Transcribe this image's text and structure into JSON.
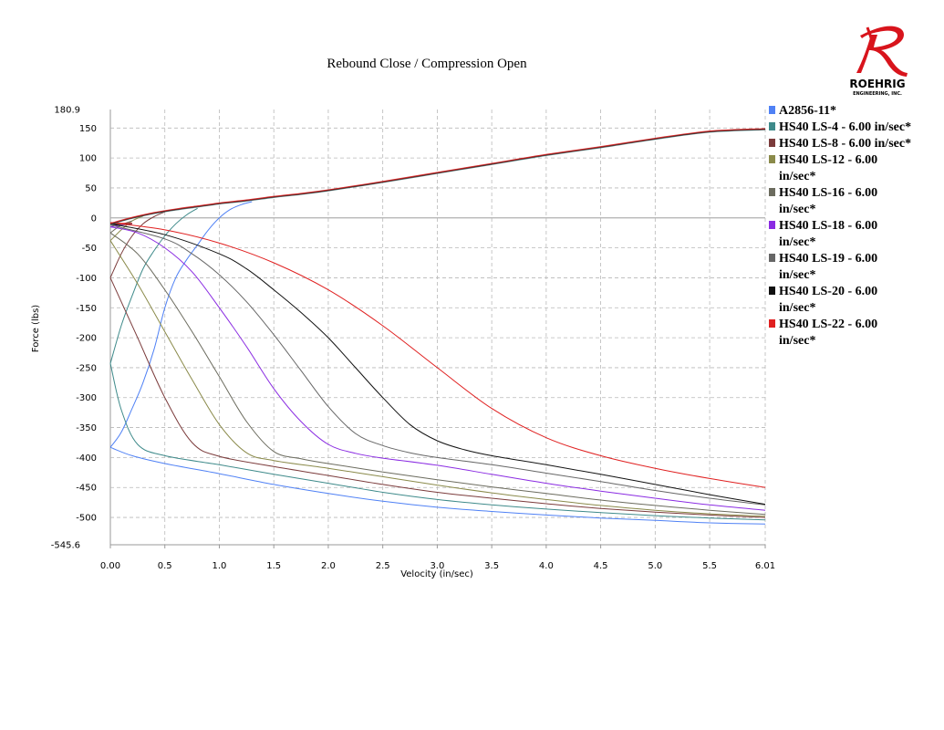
{
  "logo": {
    "name": "ROEHRIG",
    "sub": "ENGINEERING, INC."
  },
  "chart_data": {
    "type": "line",
    "title": "Rebound Close / Compression Open",
    "xlabel": "Velocity (in/sec)",
    "ylabel": "Force (lbs)",
    "xlim": [
      0,
      6.01
    ],
    "ylim": [
      -545.6,
      180.9
    ],
    "xticks": [
      "0.00",
      "0.5",
      "1.0",
      "1.5",
      "2.0",
      "2.5",
      "3.0",
      "3.5",
      "4.0",
      "4.5",
      "5.0",
      "5.5",
      "6.01"
    ],
    "xtick_values": [
      0,
      0.5,
      1.0,
      1.5,
      2.0,
      2.5,
      3.0,
      3.5,
      4.0,
      4.5,
      5.0,
      5.5,
      6.01
    ],
    "yticks": [
      "180.9",
      "150",
      "100",
      "50",
      "0",
      "-50",
      "-100",
      "-150",
      "-200",
      "-250",
      "-300",
      "-350",
      "-400",
      "-450",
      "-500",
      "-545.6"
    ],
    "ytick_values": [
      180.9,
      150,
      100,
      50,
      0,
      -50,
      -100,
      -150,
      -200,
      -250,
      -300,
      -350,
      -400,
      -450,
      -500,
      -545.6
    ],
    "grid": true,
    "legend_position": "right",
    "compression_curve": {
      "x": [
        0,
        0.2,
        0.4,
        0.6,
        0.8,
        1.0,
        1.25,
        1.5,
        1.75,
        2.0,
        2.5,
        3.0,
        3.5,
        4.0,
        4.5,
        5.0,
        5.5,
        6.01
      ],
      "y": [
        -10,
        0,
        8,
        14,
        19,
        24,
        29,
        35,
        40,
        46,
        60,
        75,
        90,
        105,
        118,
        132,
        144,
        148
      ]
    },
    "series": [
      {
        "name": "A2856-11*",
        "color": "#4f81f5",
        "rebound_x": [
          0,
          0.2,
          0.5,
          1.0,
          1.5,
          2.0,
          2.5,
          3.0,
          3.5,
          4.0,
          4.5,
          5.0,
          5.5,
          6.01
        ],
        "rebound_y": [
          -383,
          -397,
          -410,
          -427,
          -445,
          -460,
          -473,
          -483,
          -490,
          -496,
          -501,
          -505,
          -509,
          -511
        ],
        "branch_x": [
          0,
          0.1,
          0.2,
          0.3,
          0.4,
          0.5,
          0.6,
          0.7,
          0.8,
          0.9,
          1.0,
          1.1,
          1.2,
          1.3
        ],
        "branch_y": [
          -383,
          -358,
          -318,
          -275,
          -220,
          -150,
          -100,
          -70,
          -45,
          -20,
          0,
          14,
          22,
          27
        ]
      },
      {
        "name": "HS40 LS-4 - 6.00 in/sec*",
        "color": "#3e8a8a",
        "rebound_x": [
          0,
          0.1,
          0.25,
          0.5,
          1.0,
          1.5,
          2.0,
          2.5,
          3.0,
          3.5,
          4.0,
          4.5,
          5.0,
          5.5,
          6.01
        ],
        "rebound_y": [
          -243,
          -320,
          -378,
          -397,
          -412,
          -428,
          -443,
          -458,
          -470,
          -479,
          -486,
          -492,
          -497,
          -501,
          -504
        ],
        "branch_x": [
          0,
          0.1,
          0.2,
          0.3,
          0.4,
          0.5,
          0.6,
          0.7,
          0.8
        ],
        "branch_y": [
          -243,
          -180,
          -130,
          -85,
          -55,
          -30,
          -10,
          5,
          16
        ]
      },
      {
        "name": "HS40 LS-8 - 6.00 in/sec*",
        "color": "#7b3b3b",
        "rebound_x": [
          0,
          0.25,
          0.5,
          0.75,
          1.0,
          1.5,
          2.0,
          2.5,
          3.0,
          3.5,
          4.0,
          4.5,
          5.0,
          5.5,
          6.01
        ],
        "rebound_y": [
          -100,
          -200,
          -300,
          -375,
          -398,
          -415,
          -430,
          -445,
          -458,
          -468,
          -477,
          -485,
          -491,
          -496,
          -500
        ],
        "branch_x": [
          0,
          0.1,
          0.2,
          0.3,
          0.4,
          0.5
        ],
        "branch_y": [
          -100,
          -60,
          -30,
          -10,
          2,
          10
        ]
      },
      {
        "name": "HS40 LS-12 - 6.00 in/sec*",
        "color": "#8a8a4a",
        "rebound_x": [
          0,
          0.25,
          0.5,
          0.75,
          1.0,
          1.25,
          1.5,
          2.0,
          2.5,
          3.0,
          3.5,
          4.0,
          4.5,
          5.0,
          5.5,
          6.01
        ],
        "rebound_y": [
          -38,
          -110,
          -190,
          -270,
          -345,
          -392,
          -405,
          -418,
          -432,
          -446,
          -459,
          -470,
          -480,
          -488,
          -494,
          -498
        ],
        "branch_x": [
          0,
          0.1,
          0.2,
          0.3
        ],
        "branch_y": [
          -38,
          -20,
          -5,
          3
        ]
      },
      {
        "name": "HS40 LS-16 - 6.00 in/sec*",
        "color": "#6b6b5e",
        "rebound_x": [
          0,
          0.25,
          0.5,
          0.75,
          1.0,
          1.25,
          1.5,
          1.75,
          2.0,
          2.5,
          3.0,
          3.5,
          4.0,
          4.5,
          5.0,
          5.5,
          6.01
        ],
        "rebound_y": [
          -25,
          -60,
          -120,
          -190,
          -265,
          -340,
          -390,
          -402,
          -410,
          -424,
          -437,
          -449,
          -460,
          -471,
          -480,
          -488,
          -495
        ],
        "branch_x": [
          0,
          0.1,
          0.2
        ],
        "branch_y": [
          -25,
          -12,
          -5
        ]
      },
      {
        "name": "HS40 LS-18 - 6.00 in/sec*",
        "color": "#8a2be2",
        "rebound_x": [
          0,
          0.25,
          0.5,
          0.75,
          1.0,
          1.25,
          1.5,
          1.75,
          2.0,
          2.25,
          2.5,
          3.0,
          3.5,
          4.0,
          4.5,
          5.0,
          5.5,
          6.01
        ],
        "rebound_y": [
          -15,
          -25,
          -50,
          -90,
          -150,
          -215,
          -285,
          -340,
          -378,
          -393,
          -401,
          -413,
          -428,
          -443,
          -456,
          -468,
          -479,
          -488
        ],
        "branch_x": [
          0,
          0.1,
          0.2
        ],
        "branch_y": [
          -15,
          -12,
          -10
        ]
      },
      {
        "name": "HS40 LS-19 - 6.00 in/sec*",
        "color": "#666666",
        "rebound_x": [
          0,
          0.5,
          0.75,
          1.0,
          1.25,
          1.5,
          1.75,
          2.0,
          2.25,
          2.5,
          2.75,
          3.0,
          3.5,
          4.0,
          4.5,
          5.0,
          5.5,
          6.01
        ],
        "rebound_y": [
          -12,
          -35,
          -60,
          -95,
          -140,
          -195,
          -255,
          -315,
          -360,
          -380,
          -392,
          -400,
          -412,
          -426,
          -440,
          -455,
          -468,
          -479
        ],
        "branch_x": [
          0,
          0.1,
          0.2
        ],
        "branch_y": [
          -12,
          -11,
          -10
        ]
      },
      {
        "name": "HS40 LS-20 - 6.00 in/sec*",
        "color": "#111111",
        "rebound_x": [
          0,
          0.5,
          1.0,
          1.25,
          1.5,
          1.75,
          2.0,
          2.25,
          2.5,
          2.75,
          3.0,
          3.25,
          3.5,
          4.0,
          4.5,
          5.0,
          5.5,
          6.01
        ],
        "rebound_y": [
          -10,
          -28,
          -60,
          -85,
          -120,
          -158,
          -200,
          -250,
          -300,
          -345,
          -372,
          -387,
          -397,
          -412,
          -428,
          -445,
          -462,
          -478
        ],
        "branch_x": [
          0,
          0.1,
          0.2
        ],
        "branch_y": [
          -10,
          -10,
          -9
        ]
      },
      {
        "name": "HS40 LS-22 - 6.00 in/sec*",
        "color": "#e02020",
        "rebound_x": [
          0,
          0.5,
          1.0,
          1.5,
          2.0,
          2.5,
          3.0,
          3.5,
          4.0,
          4.5,
          5.0,
          5.5,
          6.01
        ],
        "rebound_y": [
          -8,
          -20,
          -42,
          -75,
          -120,
          -180,
          -250,
          -318,
          -367,
          -397,
          -418,
          -435,
          -450
        ],
        "branch_x": [
          0,
          0.1,
          0.2
        ],
        "branch_y": [
          -8,
          -9,
          -9
        ]
      }
    ],
    "legend": [
      {
        "lines": [
          "A2856-11*"
        ]
      },
      {
        "lines": [
          "HS40 LS-4 - 6.00 in/sec*"
        ]
      },
      {
        "lines": [
          "HS40 LS-8 - 6.00 in/sec*"
        ]
      },
      {
        "lines": [
          "HS40 LS-12 - 6.00",
          "in/sec*"
        ]
      },
      {
        "lines": [
          "HS40 LS-16 - 6.00",
          "in/sec*"
        ]
      },
      {
        "lines": [
          "HS40 LS-18 - 6.00",
          "in/sec*"
        ]
      },
      {
        "lines": [
          "HS40 LS-19 - 6.00",
          "in/sec*"
        ]
      },
      {
        "lines": [
          "HS40 LS-20 - 6.00",
          "in/sec*"
        ]
      },
      {
        "lines": [
          "HS40 LS-22 - 6.00",
          "in/sec*"
        ]
      }
    ]
  }
}
